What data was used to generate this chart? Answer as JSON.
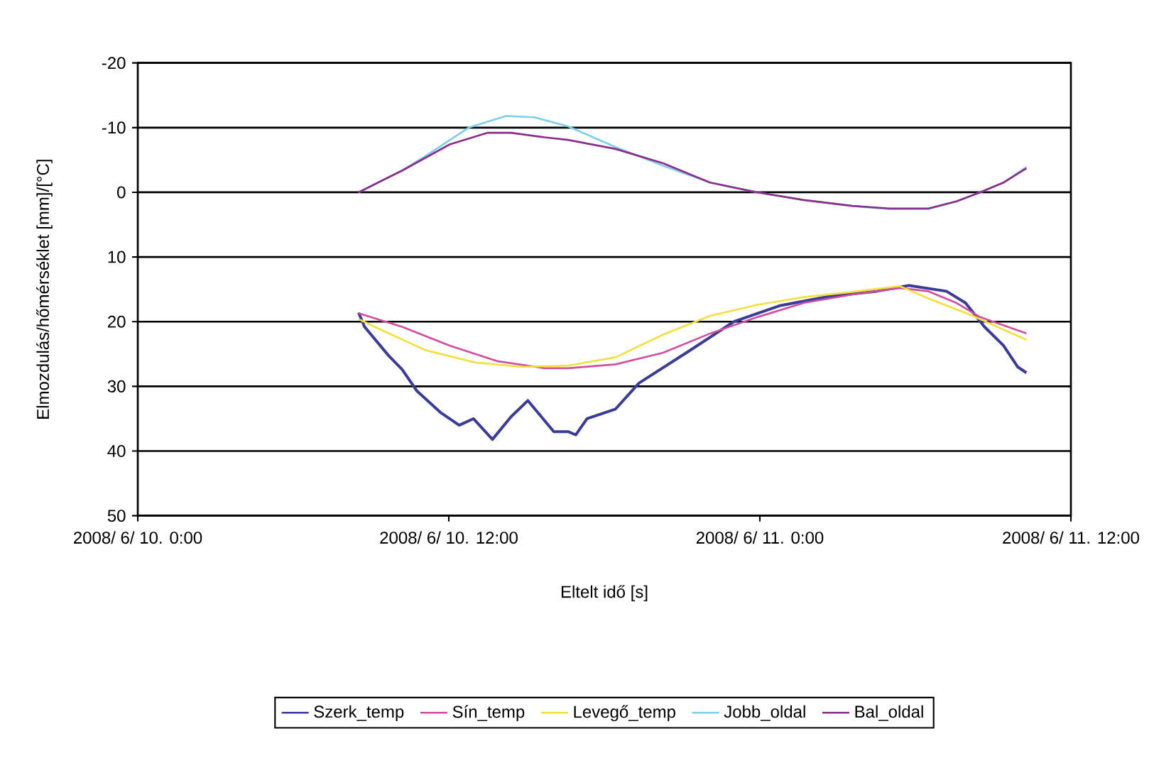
{
  "chart_data": {
    "type": "line",
    "xlabel": "Eltelt idő [s]",
    "ylabel": "Elmozdulás/hőmérséklet [mm]/[°C]",
    "xlim": [
      "2008-06-10T00:00",
      "2008-06-11T12:00"
    ],
    "xticks": [
      {
        "value": "2008-06-10T00:00",
        "label": "2008/ 6/ 10. 0:00"
      },
      {
        "value": "2008-06-10T12:00",
        "label": "2008/ 6/ 10. 12:00"
      },
      {
        "value": "2008-06-11T00:00",
        "label": "2008/ 6/ 11. 0:00"
      },
      {
        "value": "2008-06-11T12:00",
        "label": "2008/ 6/ 11. 12:00"
      }
    ],
    "ylim": [
      50,
      -20
    ],
    "yticks": [
      -20,
      -10,
      0,
      10,
      20,
      30,
      40,
      50
    ],
    "grid": "y",
    "legend": "bottom",
    "series": [
      {
        "name": "Szerk_temp",
        "color": "#3b3b98",
        "x": [
          "2008-06-10T08:31",
          "2008-06-10T08:45",
          "2008-06-10T09:40",
          "2008-06-10T10:12",
          "2008-06-10T10:46",
          "2008-06-10T11:40",
          "2008-06-10T12:24",
          "2008-06-10T12:57",
          "2008-06-10T13:41",
          "2008-06-10T14:24",
          "2008-06-10T15:03",
          "2008-06-10T16:03",
          "2008-06-10T16:36",
          "2008-06-10T16:54",
          "2008-06-10T17:20",
          "2008-06-10T18:26",
          "2008-06-10T19:20",
          "2008-06-10T21:10",
          "2008-06-10T23:00",
          "2008-06-11T00:48",
          "2008-06-11T02:39",
          "2008-06-11T04:30",
          "2008-06-11T05:45",
          "2008-06-11T07:12",
          "2008-06-11T07:56",
          "2008-06-11T08:40",
          "2008-06-11T09:24",
          "2008-06-11T09:57",
          "2008-06-11T10:17"
        ],
        "values": [
          18.6,
          20.8,
          25.2,
          27.4,
          30.7,
          34.0,
          36.0,
          35.0,
          38.2,
          34.7,
          32.2,
          37.0,
          37.0,
          37.5,
          35.0,
          33.5,
          29.5,
          24.8,
          20.0,
          17.5,
          16.1,
          15.3,
          14.4,
          15.3,
          17.1,
          20.8,
          23.7,
          27.0,
          27.9
        ]
      },
      {
        "name": "Sín_temp",
        "color": "#d04fa0",
        "x": [
          "2008-06-10T08:31",
          "2008-06-10T10:12",
          "2008-06-10T12:02",
          "2008-06-10T13:52",
          "2008-06-10T15:42",
          "2008-06-10T16:36",
          "2008-06-10T18:26",
          "2008-06-10T20:16",
          "2008-06-10T22:06",
          "2008-06-10T23:54",
          "2008-06-11T01:42",
          "2008-06-11T03:34",
          "2008-06-11T05:24",
          "2008-06-11T06:30",
          "2008-06-11T07:35",
          "2008-06-11T08:30",
          "2008-06-11T10:17"
        ],
        "values": [
          18.7,
          20.8,
          23.7,
          26.1,
          27.2,
          27.2,
          26.6,
          24.8,
          21.8,
          19.3,
          17.1,
          15.8,
          14.8,
          15.3,
          17.1,
          19.3,
          21.8
        ]
      },
      {
        "name": "Levegő_temp",
        "color": "#f2e040",
        "x": [
          "2008-06-10T08:31",
          "2008-06-10T09:18",
          "2008-06-10T11:06",
          "2008-06-10T13:00",
          "2008-06-10T14:48",
          "2008-06-10T16:36",
          "2008-06-10T18:26",
          "2008-06-10T20:16",
          "2008-06-10T22:05",
          "2008-06-10T23:54",
          "2008-06-11T01:42",
          "2008-06-11T03:34",
          "2008-06-11T05:24",
          "2008-06-11T06:30",
          "2008-06-11T08:06",
          "2008-06-11T10:17"
        ],
        "values": [
          19.6,
          21.1,
          24.4,
          26.3,
          27.0,
          26.8,
          25.5,
          22.0,
          19.1,
          17.4,
          16.2,
          15.4,
          14.5,
          16.4,
          18.9,
          22.8
        ]
      },
      {
        "name": "Jobb_oldal",
        "color": "#7fcfe8",
        "x": [
          "2008-06-10T08:31",
          "2008-06-10T10:13",
          "2008-06-10T11:06",
          "2008-06-10T12:46",
          "2008-06-10T14:12",
          "2008-06-10T15:18",
          "2008-06-10T16:36",
          "2008-06-10T18:26",
          "2008-06-10T20:16",
          "2008-06-10T22:05",
          "2008-06-10T23:54",
          "2008-06-11T01:42",
          "2008-06-11T03:34",
          "2008-06-11T05:00",
          "2008-06-11T06:30",
          "2008-06-11T07:35",
          "2008-06-11T08:30",
          "2008-06-11T09:24",
          "2008-06-11T10:17"
        ],
        "values": [
          0,
          -3.4,
          -5.6,
          -10.0,
          -11.8,
          -11.6,
          -10.2,
          -7.0,
          -4.1,
          -1.5,
          0,
          1.2,
          2.1,
          2.6,
          2.6,
          1.4,
          0,
          -1.5,
          -3.9
        ]
      },
      {
        "name": "Bal_oldal",
        "color": "#8b2e8b",
        "x": [
          "2008-06-10T08:31",
          "2008-06-10T10:13",
          "2008-06-10T12:02",
          "2008-06-10T13:30",
          "2008-06-10T14:24",
          "2008-06-10T15:42",
          "2008-06-10T16:36",
          "2008-06-10T18:26",
          "2008-06-10T20:16",
          "2008-06-10T22:05",
          "2008-06-10T23:54",
          "2008-06-11T01:42",
          "2008-06-11T03:34",
          "2008-06-11T05:00",
          "2008-06-11T06:30",
          "2008-06-11T07:35",
          "2008-06-11T08:30",
          "2008-06-11T09:24",
          "2008-06-11T10:17"
        ],
        "values": [
          0,
          -3.4,
          -7.4,
          -9.2,
          -9.2,
          -8.5,
          -8.1,
          -6.7,
          -4.5,
          -1.5,
          0,
          1.2,
          2.1,
          2.5,
          2.5,
          1.4,
          0,
          -1.5,
          -3.7
        ]
      }
    ]
  }
}
